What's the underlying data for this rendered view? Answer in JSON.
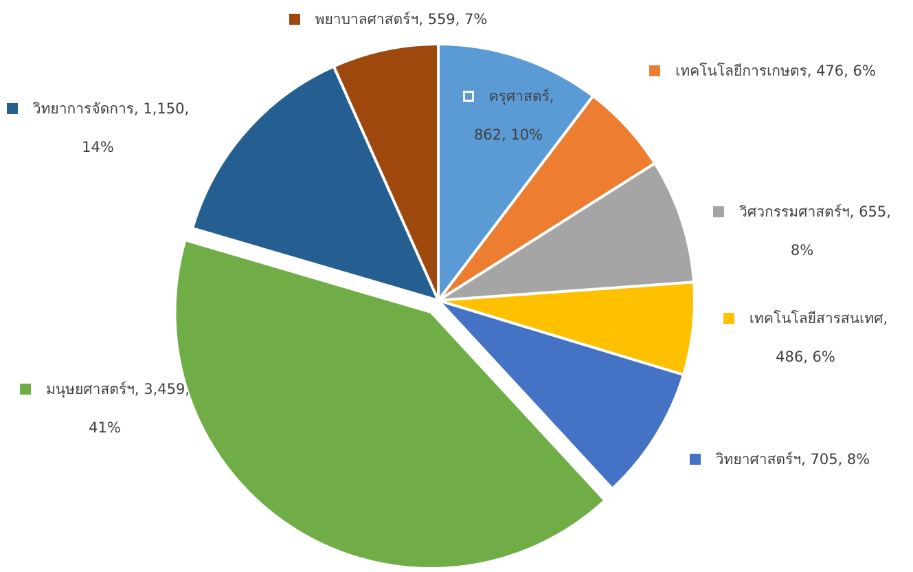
{
  "chart_data": {
    "type": "pie",
    "categories": [
      "ครุศาสตร์",
      "เทคโนโลยีการเกษตร",
      "วิศวกรรมศาสตร์ฯ",
      "เทคโนโลยีสารสนเทศ",
      "วิทยาศาสตร์ฯ",
      "มนุษยศาสตร์ฯ",
      "วิทยาการจัดการ",
      "พยาบาลศาสตร์ฯ"
    ],
    "values": [
      862,
      476,
      655,
      486,
      705,
      3459,
      1150,
      559
    ],
    "value_labels": [
      "ครุศาสตร์, 862, 10%",
      "เทคโนโลยีการเกษตร, 476, 6%",
      "วิศวกรรมศาสตร์ฯ, 655, 8%",
      "เทคโนโลยีสารสนเทศ, 486, 6%",
      "วิทยาศาสตร์ฯ, 705, 8%",
      "มนุษยศาสตร์ฯ, 3,459, 41%",
      "วิทยาการจัดการ, 1,150, 14%",
      "พยาบาลศาสตร์ฯ, 559, 7%"
    ],
    "colors": [
      "#5b9bd5",
      "#ed7d31",
      "#a5a5a5",
      "#ffc000",
      "#4472c4",
      "#70ad47",
      "#255e91",
      "#9e480e"
    ],
    "exploded": [
      5
    ]
  }
}
